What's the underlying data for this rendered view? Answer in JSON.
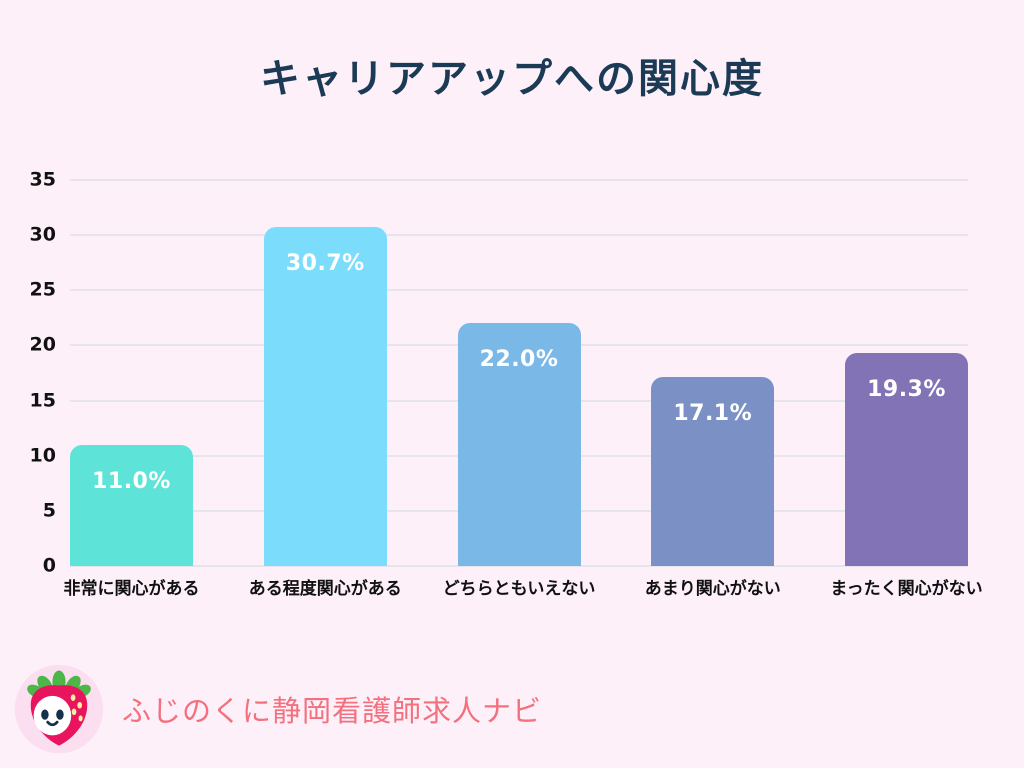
{
  "title": "キャリアアップへの関心度",
  "chart_data": {
    "type": "bar",
    "title": "キャリアアップへの関心度",
    "categories": [
      "非常に関心がある",
      "ある程度関心がある",
      "どちらともいえない",
      "あまり関心がない",
      "まったく関心がない"
    ],
    "values": [
      11.0,
      30.7,
      22.0,
      17.1,
      19.3
    ],
    "value_labels": [
      "11.0%",
      "30.7%",
      "22.0%",
      "17.1%",
      "19.3%"
    ],
    "bar_colors": [
      "#5ee3d9",
      "#7cdcfc",
      "#7ab8e8",
      "#7b90c5",
      "#8273b6"
    ],
    "xlabel": "",
    "ylabel": "",
    "ylim": [
      0,
      35
    ],
    "yticks": [
      0,
      5,
      10,
      15,
      20,
      25,
      30,
      35
    ],
    "grid": true,
    "legend": false,
    "value_label_color": "#ffffff"
  },
  "colors": {
    "background": "#fdf0f9",
    "gridline": "#e8e4ee",
    "title_text": "#1b3a55",
    "axis_text": "#111111",
    "brand_text": "#f3707e"
  },
  "footer": {
    "brand_text": "ふじのくに静岡看護師求人ナビ",
    "mascot": "strawberry-mascot"
  }
}
